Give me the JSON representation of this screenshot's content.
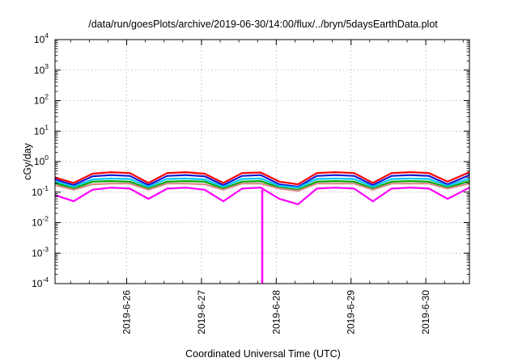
{
  "chart_data": {
    "type": "line",
    "title": "/data/run/goesPlots/archive/2019-06-30/14:00/flux/../bryn/5daysEarthData.plot",
    "xlabel": "Coordinated Universal Time (UTC)",
    "ylabel": "cGy/day",
    "yscale": "log",
    "ylim": [
      0.0001,
      10000
    ],
    "y_ticks": [
      {
        "base": "10",
        "exp": "-4",
        "value": 0.0001
      },
      {
        "base": "10",
        "exp": "-3",
        "value": 0.001
      },
      {
        "base": "10",
        "exp": "-2",
        "value": 0.01
      },
      {
        "base": "10",
        "exp": "-1",
        "value": 0.1
      },
      {
        "base": "10",
        "exp": "0",
        "value": 1
      },
      {
        "base": "10",
        "exp": "1",
        "value": 10
      },
      {
        "base": "10",
        "exp": "2",
        "value": 100
      },
      {
        "base": "10",
        "exp": "3",
        "value": 1000
      },
      {
        "base": "10",
        "exp": "4",
        "value": 10000
      }
    ],
    "xlim": [
      "2019-06-25T01:00",
      "2019-06-30T14:00"
    ],
    "x_ticks": [
      "2019-6-26",
      "2019-6-27",
      "2019-6-28",
      "2019-6-29",
      "2019-6-30"
    ],
    "grid": true,
    "legend": "none",
    "series": [
      {
        "color": "#ff0000",
        "x": [
          "2019-06-25T01:00",
          "2019-06-25T07:00",
          "2019-06-25T13:00",
          "2019-06-25T19:00",
          "2019-06-26T01:00",
          "2019-06-26T07:00",
          "2019-06-26T13:00",
          "2019-06-26T19:00",
          "2019-06-27T01:00",
          "2019-06-27T07:00",
          "2019-06-27T13:00",
          "2019-06-27T19:00",
          "2019-06-28T01:00",
          "2019-06-28T07:00",
          "2019-06-28T13:00",
          "2019-06-28T19:00",
          "2019-06-29T01:00",
          "2019-06-29T07:00",
          "2019-06-29T13:00",
          "2019-06-29T19:00",
          "2019-06-30T01:00",
          "2019-06-30T07:00",
          "2019-06-30T14:00"
        ],
        "y": [
          0.3,
          0.2,
          0.4,
          0.45,
          0.42,
          0.2,
          0.42,
          0.45,
          0.4,
          0.2,
          0.42,
          0.44,
          0.22,
          0.18,
          0.42,
          0.45,
          0.42,
          0.2,
          0.42,
          0.45,
          0.42,
          0.22,
          0.45
        ]
      },
      {
        "color": "#1515d0",
        "x": [
          "2019-06-25T01:00",
          "2019-06-25T07:00",
          "2019-06-25T13:00",
          "2019-06-25T19:00",
          "2019-06-26T01:00",
          "2019-06-26T07:00",
          "2019-06-26T13:00",
          "2019-06-26T19:00",
          "2019-06-27T01:00",
          "2019-06-27T07:00",
          "2019-06-27T13:00",
          "2019-06-27T19:00",
          "2019-06-28T01:00",
          "2019-06-28T07:00",
          "2019-06-28T13:00",
          "2019-06-28T19:00",
          "2019-06-29T01:00",
          "2019-06-29T07:00",
          "2019-06-29T13:00",
          "2019-06-29T19:00",
          "2019-06-30T01:00",
          "2019-06-30T07:00",
          "2019-06-30T14:00"
        ],
        "y": [
          0.26,
          0.17,
          0.33,
          0.36,
          0.34,
          0.17,
          0.34,
          0.36,
          0.33,
          0.17,
          0.34,
          0.36,
          0.18,
          0.15,
          0.34,
          0.36,
          0.34,
          0.17,
          0.34,
          0.36,
          0.34,
          0.18,
          0.36
        ]
      },
      {
        "color": "#00c8ff",
        "x": [
          "2019-06-25T01:00",
          "2019-06-25T07:00",
          "2019-06-25T13:00",
          "2019-06-25T19:00",
          "2019-06-26T01:00",
          "2019-06-26T07:00",
          "2019-06-26T13:00",
          "2019-06-26T19:00",
          "2019-06-27T01:00",
          "2019-06-27T07:00",
          "2019-06-27T13:00",
          "2019-06-27T19:00",
          "2019-06-28T01:00",
          "2019-06-28T07:00",
          "2019-06-28T13:00",
          "2019-06-28T19:00",
          "2019-06-29T01:00",
          "2019-06-29T07:00",
          "2019-06-29T13:00",
          "2019-06-29T19:00",
          "2019-06-30T01:00",
          "2019-06-30T07:00",
          "2019-06-30T14:00"
        ],
        "y": [
          0.22,
          0.15,
          0.26,
          0.28,
          0.27,
          0.15,
          0.27,
          0.28,
          0.26,
          0.15,
          0.27,
          0.28,
          0.16,
          0.14,
          0.27,
          0.28,
          0.27,
          0.15,
          0.27,
          0.28,
          0.27,
          0.16,
          0.28
        ]
      },
      {
        "color": "#00aa00",
        "x": [
          "2019-06-25T01:00",
          "2019-06-25T07:00",
          "2019-06-25T13:00",
          "2019-06-25T19:00",
          "2019-06-26T01:00",
          "2019-06-26T07:00",
          "2019-06-26T13:00",
          "2019-06-26T19:00",
          "2019-06-27T01:00",
          "2019-06-27T07:00",
          "2019-06-27T13:00",
          "2019-06-27T19:00",
          "2019-06-28T01:00",
          "2019-06-28T07:00",
          "2019-06-28T13:00",
          "2019-06-28T19:00",
          "2019-06-29T01:00",
          "2019-06-29T07:00",
          "2019-06-29T13:00",
          "2019-06-29T19:00",
          "2019-06-30T01:00",
          "2019-06-30T07:00",
          "2019-06-30T14:00"
        ],
        "y": [
          0.2,
          0.13,
          0.22,
          0.23,
          0.22,
          0.13,
          0.22,
          0.23,
          0.22,
          0.13,
          0.22,
          0.23,
          0.14,
          0.12,
          0.22,
          0.23,
          0.22,
          0.13,
          0.22,
          0.23,
          0.22,
          0.14,
          0.23
        ]
      },
      {
        "color": "#d98a8a",
        "x": [
          "2019-06-25T01:00",
          "2019-06-25T07:00",
          "2019-06-25T13:00",
          "2019-06-25T19:00",
          "2019-06-26T01:00",
          "2019-06-26T07:00",
          "2019-06-26T13:00",
          "2019-06-26T19:00",
          "2019-06-27T01:00",
          "2019-06-27T07:00",
          "2019-06-27T13:00",
          "2019-06-27T19:00",
          "2019-06-28T01:00",
          "2019-06-28T07:00",
          "2019-06-28T13:00",
          "2019-06-28T19:00",
          "2019-06-29T01:00",
          "2019-06-29T07:00",
          "2019-06-29T13:00",
          "2019-06-29T19:00",
          "2019-06-30T01:00",
          "2019-06-30T07:00",
          "2019-06-30T14:00"
        ],
        "y": [
          0.17,
          0.12,
          0.18,
          0.19,
          0.19,
          0.12,
          0.19,
          0.19,
          0.18,
          0.12,
          0.19,
          0.19,
          0.13,
          0.11,
          0.19,
          0.19,
          0.19,
          0.12,
          0.19,
          0.19,
          0.19,
          0.13,
          0.19
        ]
      },
      {
        "color": "#ff00ff",
        "x": [
          "2019-06-25T01:00",
          "2019-06-25T07:00",
          "2019-06-25T13:00",
          "2019-06-25T19:00",
          "2019-06-26T01:00",
          "2019-06-26T07:00",
          "2019-06-26T13:00",
          "2019-06-26T19:00",
          "2019-06-27T01:00",
          "2019-06-27T07:00",
          "2019-06-27T13:00",
          "2019-06-27T19:00",
          "2019-06-28T01:00",
          "2019-06-28T07:00",
          "2019-06-28T13:00",
          "2019-06-28T19:00",
          "2019-06-29T01:00",
          "2019-06-29T07:00",
          "2019-06-29T13:00",
          "2019-06-29T19:00",
          "2019-06-30T01:00",
          "2019-06-30T07:00",
          "2019-06-30T14:00"
        ],
        "y": [
          0.08,
          0.05,
          0.12,
          0.14,
          0.13,
          0.06,
          0.13,
          0.14,
          0.12,
          0.05,
          0.13,
          0.14,
          0.06,
          0.04,
          0.13,
          0.14,
          0.13,
          0.05,
          0.13,
          0.14,
          0.13,
          0.06,
          0.14
        ]
      }
    ],
    "annotations": [
      {
        "text": "",
        "series_color": "#ff00ff",
        "x": "2019-06-27T19:30",
        "y": 0.0001
      }
    ]
  }
}
